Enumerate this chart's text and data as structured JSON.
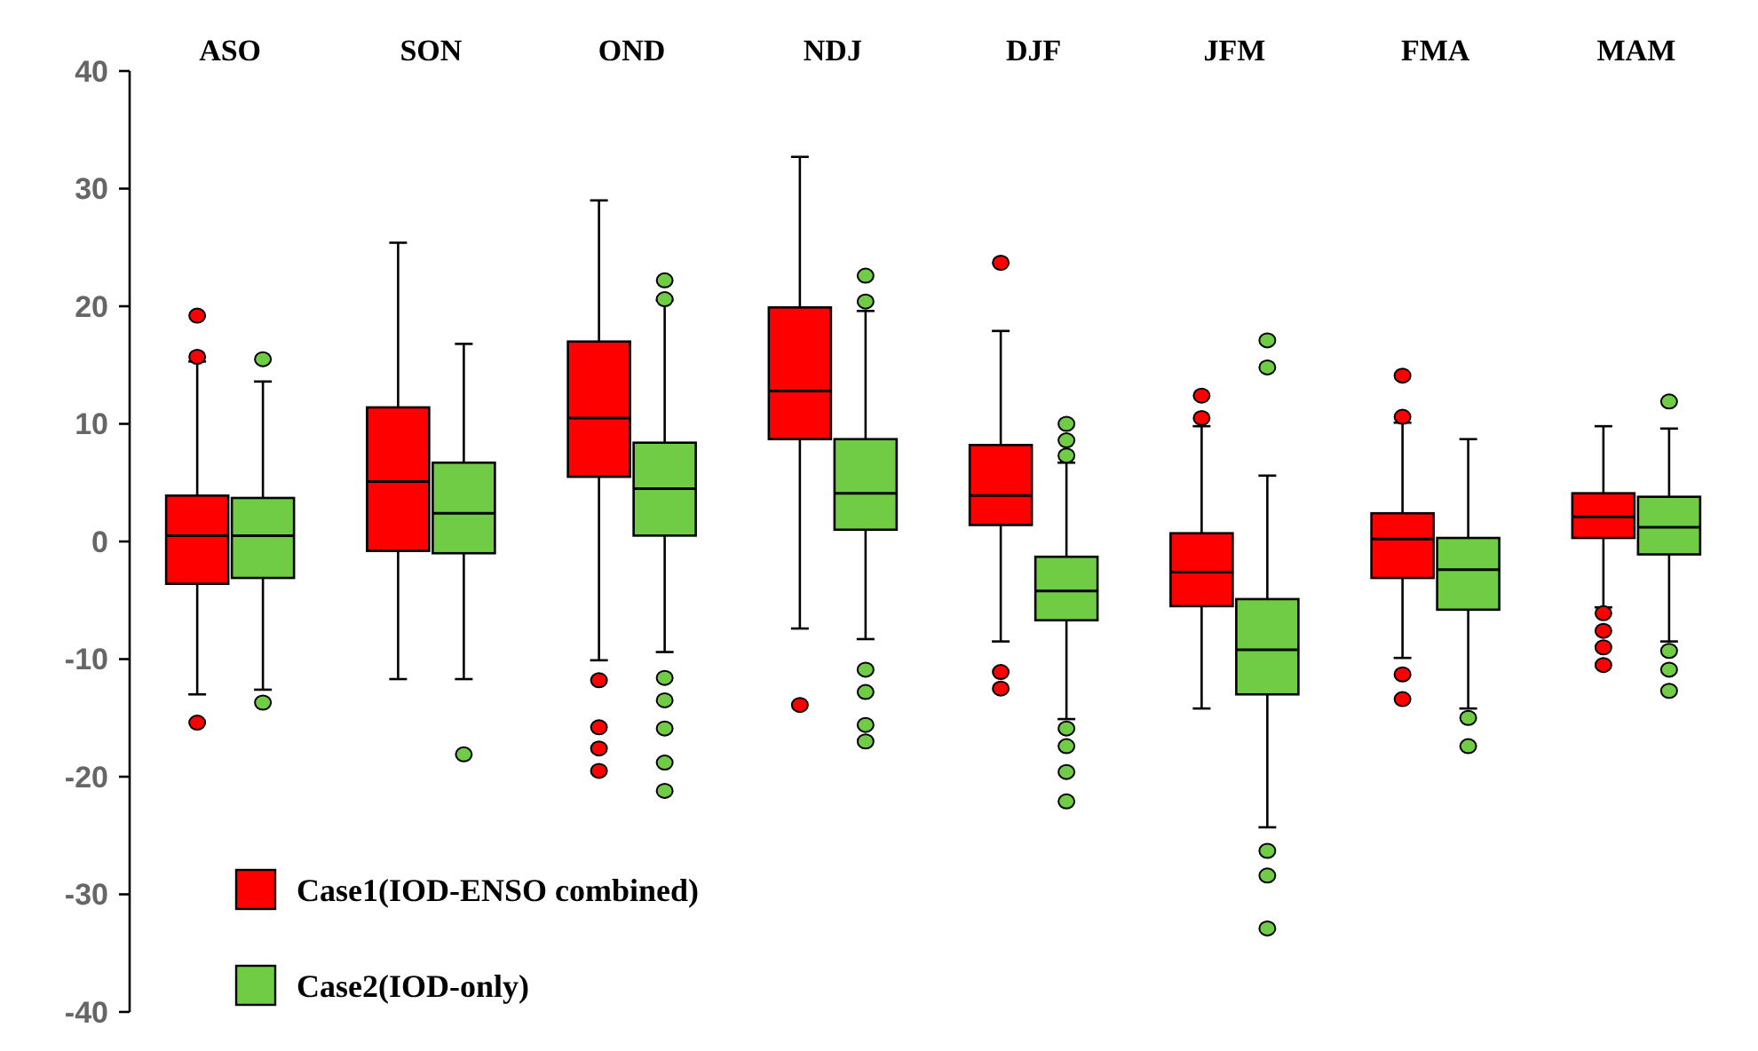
{
  "chart_data": {
    "type": "box",
    "categories": [
      "ASO",
      "SON",
      "OND",
      "NDJ",
      "DJF",
      "JFM",
      "FMA",
      "MAM"
    ],
    "ylim": [
      -40,
      40
    ],
    "yticks": [
      -40,
      -30,
      -20,
      -10,
      0,
      10,
      20,
      30,
      40
    ],
    "grid": false,
    "legend": "bottom left",
    "series": [
      {
        "name": "Case1(IOD-ENSO combined)",
        "color": "#ff0000",
        "boxes": [
          {
            "low": -13.0,
            "q1": -3.6,
            "median": 0.5,
            "q3": 3.9,
            "high": 15.3,
            "outliers": [
              19.2,
              15.7,
              -15.4
            ]
          },
          {
            "low": -11.7,
            "q1": -0.8,
            "median": 5.1,
            "q3": 11.4,
            "high": 25.4
          },
          {
            "low": -10.1,
            "q1": 5.5,
            "median": 10.5,
            "q3": 17.0,
            "high": 29.0,
            "outliers": [
              -11.8,
              -15.8,
              -17.6,
              -19.5
            ]
          },
          {
            "low": -7.4,
            "q1": 8.7,
            "median": 12.8,
            "q3": 19.9,
            "high": 32.7,
            "outliers": [
              -13.9
            ]
          },
          {
            "low": -8.5,
            "q1": 1.4,
            "median": 3.9,
            "q3": 8.2,
            "high": 17.9,
            "outliers": [
              23.7,
              -11.1,
              -12.5
            ]
          },
          {
            "low": -14.2,
            "q1": -5.5,
            "median": -2.6,
            "q3": 0.7,
            "high": 9.8,
            "outliers": [
              12.4,
              10.5
            ]
          },
          {
            "low": -9.9,
            "q1": -3.1,
            "median": 0.2,
            "q3": 2.4,
            "high": 10.1,
            "outliers": [
              14.1,
              10.6,
              -11.3,
              -13.4
            ]
          },
          {
            "low": -5.6,
            "q1": 0.3,
            "median": 2.1,
            "q3": 4.1,
            "high": 9.8,
            "outliers": [
              -6.1,
              -7.6,
              -9.0,
              -10.5
            ]
          }
        ]
      },
      {
        "name": "Case2(IOD-only)",
        "color": "#70cc44",
        "boxes": [
          {
            "low": -12.6,
            "q1": -3.1,
            "median": 0.5,
            "q3": 3.7,
            "high": 13.6,
            "outliers": [
              15.5,
              -13.7
            ]
          },
          {
            "low": -11.7,
            "q1": -1.0,
            "median": 2.4,
            "q3": 6.7,
            "high": 16.8,
            "outliers": [
              -18.1
            ]
          },
          {
            "low": -9.4,
            "q1": 0.5,
            "median": 4.5,
            "q3": 8.4,
            "high": 20.5,
            "outliers": [
              22.2,
              20.6,
              -11.6,
              -13.5,
              -15.9,
              -18.8,
              -21.2
            ]
          },
          {
            "low": -8.3,
            "q1": 1.0,
            "median": 4.1,
            "q3": 8.7,
            "high": 19.6,
            "outliers": [
              22.6,
              20.4,
              -10.9,
              -12.8,
              -15.6,
              -17.0
            ]
          },
          {
            "low": -15.1,
            "q1": -6.7,
            "median": -4.2,
            "q3": -1.3,
            "high": 6.7,
            "outliers": [
              10.0,
              8.6,
              7.3,
              -15.9,
              -17.4,
              -19.6,
              -22.1
            ]
          },
          {
            "low": -24.3,
            "q1": -13.0,
            "median": -9.2,
            "q3": -4.9,
            "high": 5.6,
            "outliers": [
              17.1,
              14.8,
              -26.3,
              -28.4,
              -32.9
            ]
          },
          {
            "low": -14.2,
            "q1": -5.8,
            "median": -2.4,
            "q3": 0.3,
            "high": 8.7,
            "outliers": [
              -15.0,
              -17.4
            ]
          },
          {
            "low": -8.5,
            "q1": -1.1,
            "median": 1.2,
            "q3": 3.8,
            "high": 9.6,
            "outliers": [
              11.9,
              -9.3,
              -10.9,
              -12.7
            ]
          }
        ]
      }
    ]
  }
}
